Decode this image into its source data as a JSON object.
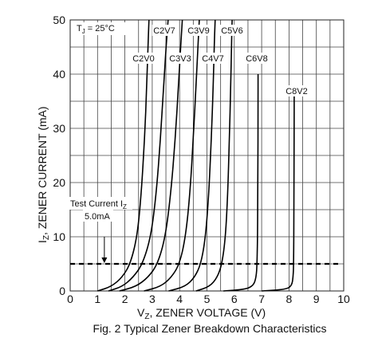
{
  "chart_data": {
    "type": "line",
    "title": "Fig. 2  Typical Zener Breakdown Characteristics",
    "xlabel": {
      "prefix": "V",
      "sub": "Z",
      "suffix": ", ZENER VOLTAGE (V)"
    },
    "ylabel": {
      "prefix": "I",
      "sub": "Z",
      "suffix": ", ZENER CURRENT (mA)"
    },
    "xlim": [
      0,
      10
    ],
    "ylim": [
      0,
      50
    ],
    "xticks": [
      0,
      1,
      2,
      3,
      4,
      5,
      6,
      7,
      8,
      9,
      10
    ],
    "yticks": [
      0,
      10,
      20,
      30,
      40,
      50
    ],
    "grid": true,
    "annotations": {
      "temperature": {
        "prefix": "T",
        "sub": "J",
        "suffix": " = 25°C"
      },
      "test_current_line": {
        "y": 5,
        "style": "dashed"
      },
      "test_current_label": {
        "prefix": "Test Current I",
        "sub": "Z"
      },
      "test_current_value": "5.0mA",
      "arrow_x": 1.25
    },
    "series": [
      {
        "name": "C2V0",
        "x": [
          1.0,
          1.5,
          1.9,
          2.2,
          2.45,
          2.6,
          2.72,
          2.8,
          2.85,
          2.88
        ],
        "y": [
          0,
          0.8,
          2.5,
          5,
          10,
          18,
          28,
          38,
          46,
          50
        ]
      },
      {
        "name": "C2V7",
        "x": [
          1.4,
          1.9,
          2.3,
          2.65,
          2.95,
          3.15,
          3.3,
          3.42,
          3.52,
          3.58
        ],
        "y": [
          0,
          0.8,
          2.5,
          5,
          10,
          18,
          28,
          38,
          46,
          50
        ]
      },
      {
        "name": "C3V3",
        "x": [
          1.8,
          2.4,
          2.85,
          3.2,
          3.48,
          3.68,
          3.84,
          3.96,
          4.05,
          4.1
        ],
        "y": [
          0,
          0.8,
          2.5,
          5,
          10,
          18,
          28,
          38,
          46,
          50
        ]
      },
      {
        "name": "C3V9",
        "x": [
          2.7,
          3.3,
          3.7,
          4.0,
          4.22,
          4.38,
          4.5,
          4.6,
          4.68,
          4.72
        ],
        "y": [
          0,
          0.8,
          2.5,
          5,
          10,
          18,
          28,
          38,
          46,
          50
        ]
      },
      {
        "name": "C4V7",
        "x": [
          3.6,
          4.2,
          4.55,
          4.78,
          4.95,
          5.07,
          5.16,
          5.23,
          5.27,
          5.3
        ],
        "y": [
          0,
          0.8,
          2.5,
          5,
          10,
          18,
          28,
          38,
          46,
          50
        ]
      },
      {
        "name": "C5V6",
        "x": [
          4.6,
          5.1,
          5.38,
          5.55,
          5.68,
          5.76,
          5.82,
          5.87,
          5.9,
          5.92
        ],
        "y": [
          0,
          0.8,
          2.5,
          5,
          10,
          18,
          28,
          38,
          46,
          50
        ]
      },
      {
        "name": "C6V8",
        "x": [
          5.6,
          6.4,
          6.7,
          6.8,
          6.83,
          6.85,
          6.86,
          6.87,
          6.87
        ],
        "y": [
          0,
          0.3,
          1,
          2.5,
          5,
          10,
          20,
          35,
          40
        ]
      },
      {
        "name": "C8V2",
        "x": [
          7.0,
          7.9,
          8.1,
          8.15,
          8.17,
          8.18,
          8.19,
          8.19
        ],
        "y": [
          0,
          0.3,
          1,
          2.5,
          5,
          15,
          30,
          37
        ]
      }
    ]
  }
}
